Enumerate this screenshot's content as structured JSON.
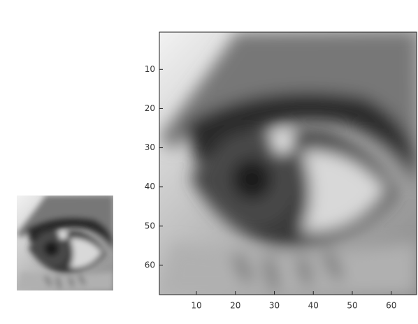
{
  "chart_data": {
    "type": "image",
    "xlim": [
      0.5,
      66.5
    ],
    "ylim": [
      0.5,
      67.5
    ],
    "ydir": "reverse",
    "xticks": [
      10,
      20,
      30,
      40,
      50,
      60
    ],
    "yticks": [
      10,
      20,
      30,
      40,
      50,
      60
    ]
  }
}
